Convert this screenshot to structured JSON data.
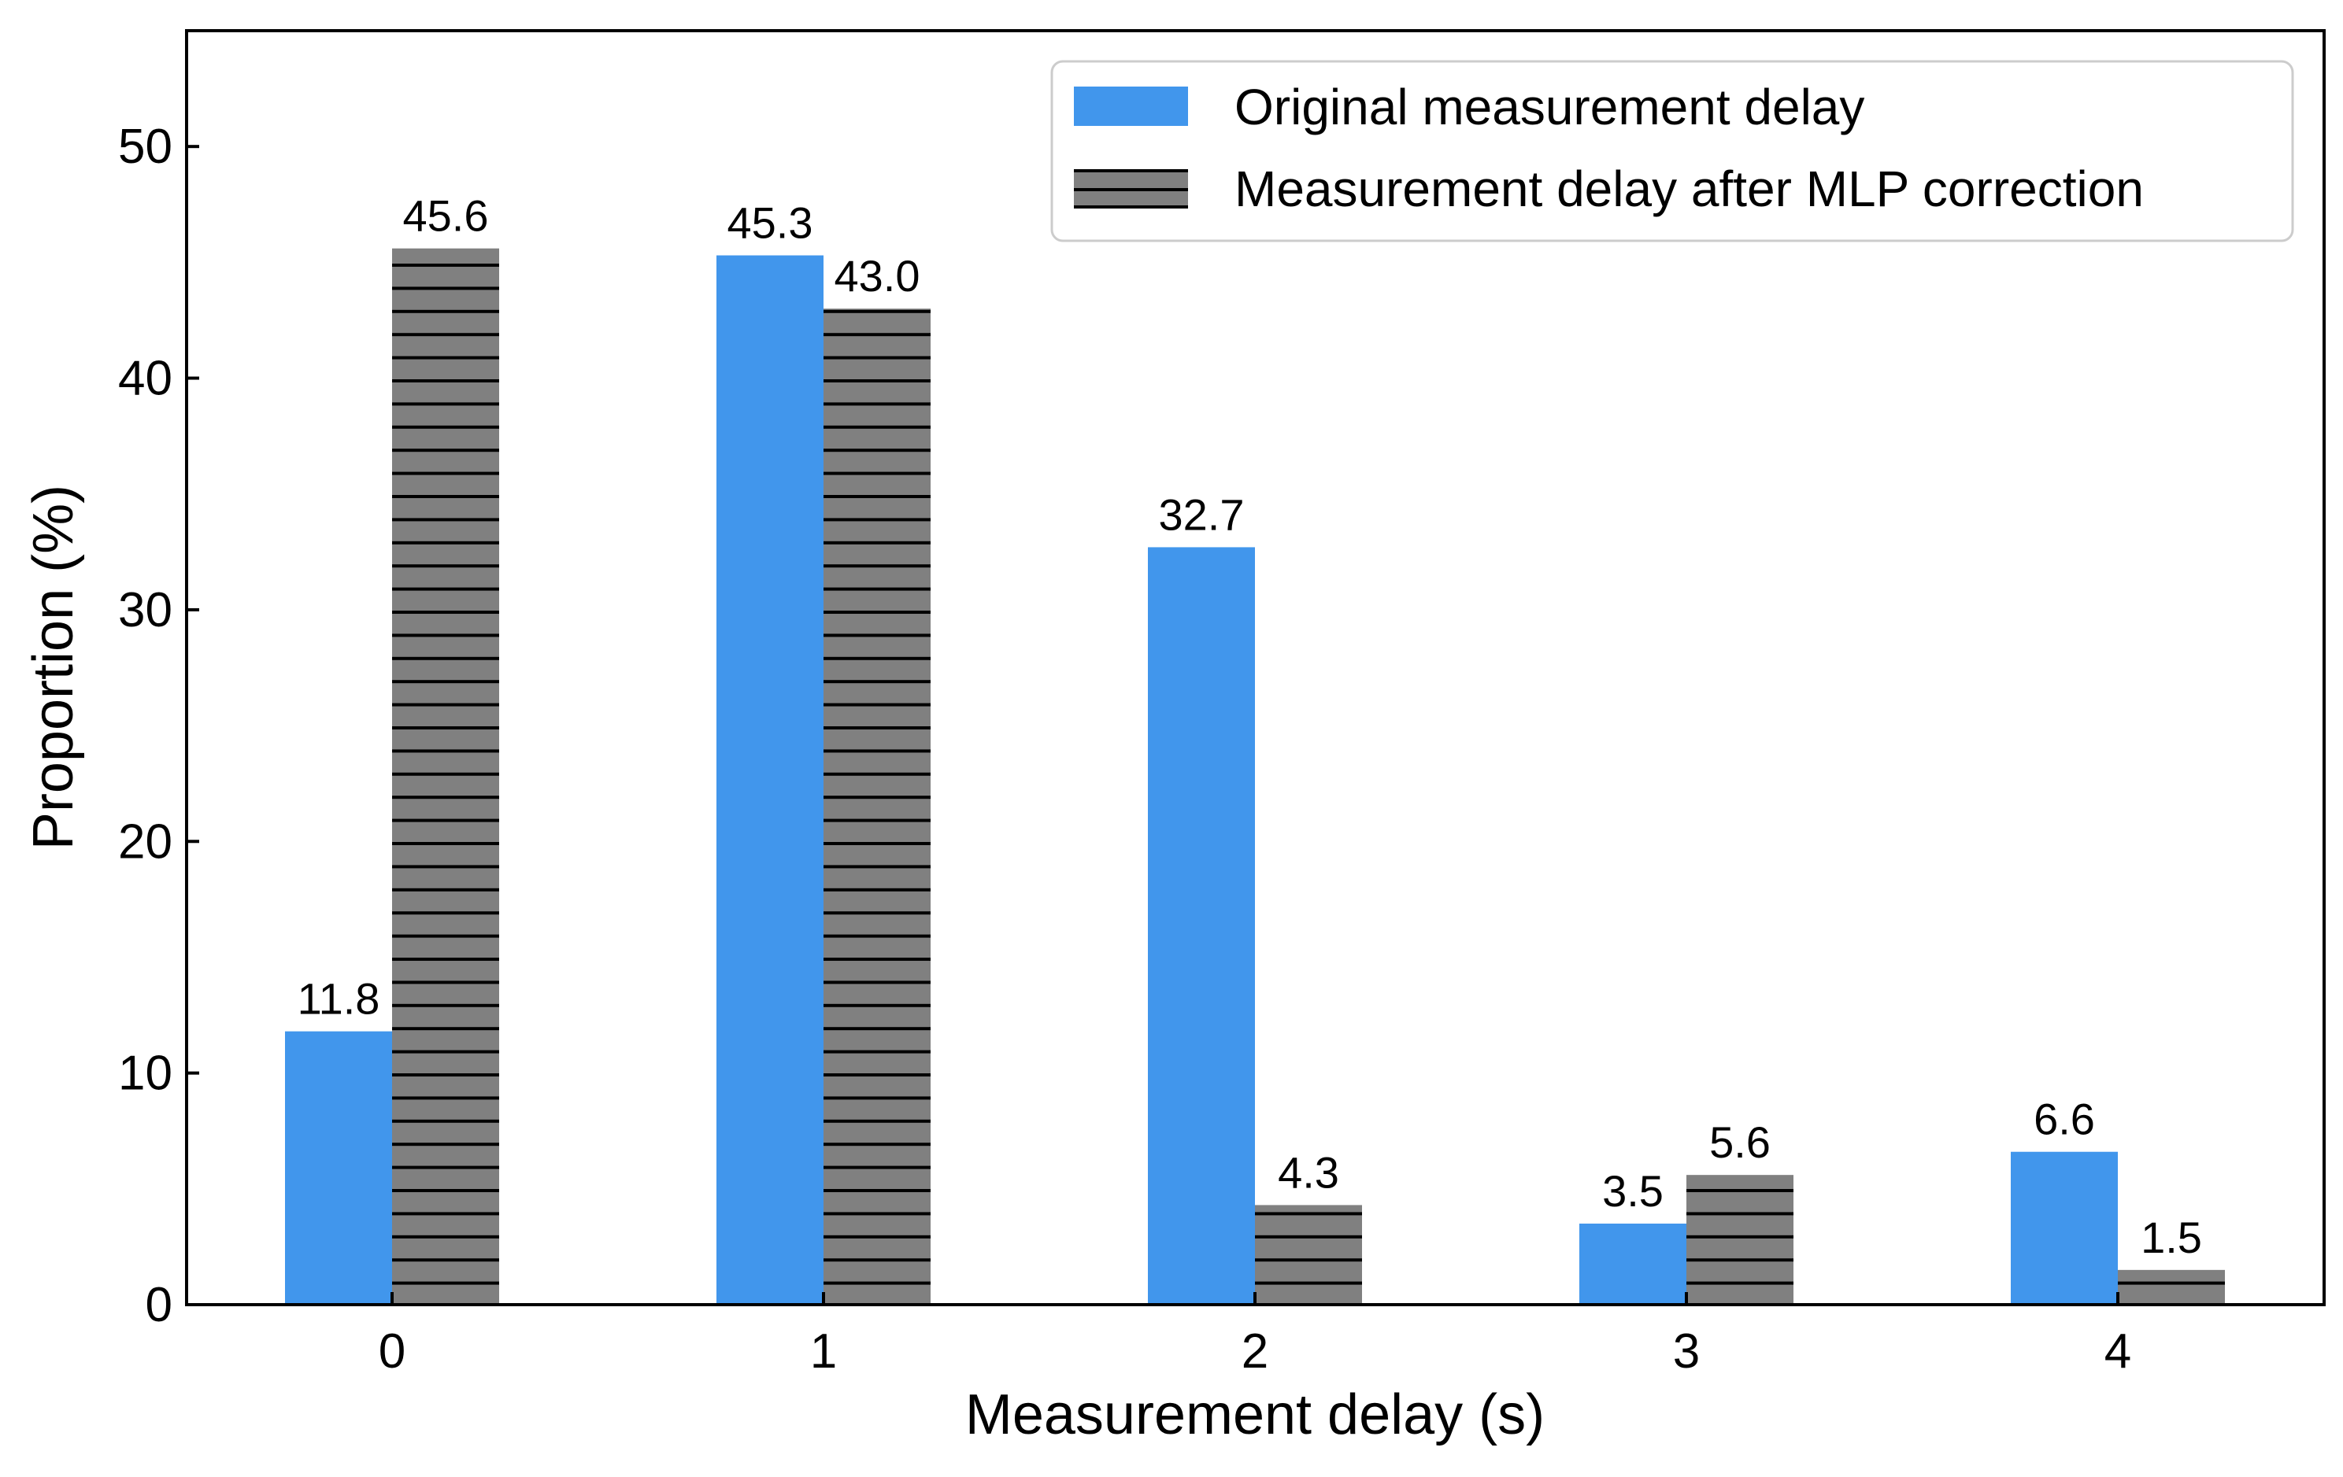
{
  "chart_data": {
    "type": "bar",
    "xlabel": "Measurement delay (s)",
    "ylabel": "Proportion (%)",
    "ylim": [
      0,
      55
    ],
    "yticks": [
      0,
      10,
      20,
      30,
      40,
      50
    ],
    "categories": [
      "0",
      "1",
      "2",
      "3",
      "4"
    ],
    "grid": false,
    "legend_position": "top-right",
    "series": [
      {
        "name": "Original measurement delay",
        "values": [
          11.8,
          45.3,
          32.7,
          3.5,
          6.6
        ],
        "labels": [
          "11.8",
          "45.3",
          "32.7",
          "3.5",
          "6.6"
        ],
        "color": "#4196EC",
        "pattern": "solid"
      },
      {
        "name": "Measurement delay after MLP correction",
        "values": [
          45.6,
          43.0,
          4.3,
          5.6,
          1.5
        ],
        "labels": [
          "45.6",
          "43.0",
          "4.3",
          "5.6",
          "1.5"
        ],
        "color": "#808080",
        "pattern": "horizontal-hatch"
      }
    ]
  }
}
